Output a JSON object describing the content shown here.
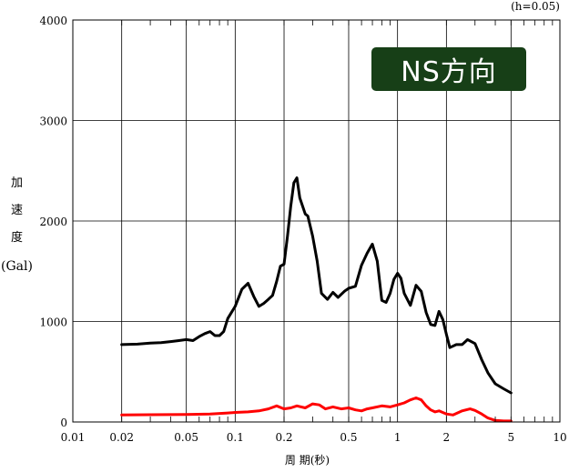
{
  "chart_data": {
    "type": "line",
    "damping_note": "(h=0.05)",
    "xlabel": "周 期(秒)",
    "ylabel_chars": [
      "加",
      "速",
      "度"
    ],
    "ylabel_unit": "(Gal)",
    "panel_label": "NS方向",
    "x_scale": "log",
    "xlim": [
      0.01,
      10
    ],
    "ylim": [
      0,
      4000
    ],
    "grid": true,
    "x_ticks": [
      0.01,
      0.02,
      0.05,
      0.1,
      0.2,
      0.5,
      1,
      2,
      5,
      10
    ],
    "x_tick_labels": [
      "0.01",
      "0.02",
      "0.05",
      "0.1",
      "0.2",
      "0.5",
      "1",
      "2",
      "5",
      "10"
    ],
    "y_ticks": [
      0,
      1000,
      2000,
      3000,
      4000
    ],
    "y_tick_labels": [
      "0",
      "1000",
      "2000",
      "3000",
      "4000"
    ],
    "series": [
      {
        "color": "#000000",
        "points": [
          [
            0.02,
            770
          ],
          [
            0.025,
            775
          ],
          [
            0.03,
            785
          ],
          [
            0.035,
            790
          ],
          [
            0.04,
            800
          ],
          [
            0.045,
            810
          ],
          [
            0.05,
            820
          ],
          [
            0.055,
            810
          ],
          [
            0.06,
            850
          ],
          [
            0.065,
            880
          ],
          [
            0.07,
            900
          ],
          [
            0.075,
            860
          ],
          [
            0.08,
            860
          ],
          [
            0.085,
            900
          ],
          [
            0.09,
            1030
          ],
          [
            0.1,
            1150
          ],
          [
            0.11,
            1320
          ],
          [
            0.12,
            1380
          ],
          [
            0.13,
            1250
          ],
          [
            0.14,
            1150
          ],
          [
            0.15,
            1180
          ],
          [
            0.16,
            1220
          ],
          [
            0.17,
            1260
          ],
          [
            0.18,
            1400
          ],
          [
            0.19,
            1550
          ],
          [
            0.2,
            1570
          ],
          [
            0.21,
            1850
          ],
          [
            0.22,
            2150
          ],
          [
            0.23,
            2380
          ],
          [
            0.24,
            2430
          ],
          [
            0.25,
            2230
          ],
          [
            0.27,
            2070
          ],
          [
            0.28,
            2050
          ],
          [
            0.3,
            1850
          ],
          [
            0.32,
            1600
          ],
          [
            0.34,
            1280
          ],
          [
            0.37,
            1220
          ],
          [
            0.4,
            1290
          ],
          [
            0.43,
            1240
          ],
          [
            0.47,
            1300
          ],
          [
            0.5,
            1330
          ],
          [
            0.55,
            1350
          ],
          [
            0.6,
            1560
          ],
          [
            0.65,
            1680
          ],
          [
            0.7,
            1770
          ],
          [
            0.75,
            1600
          ],
          [
            0.8,
            1210
          ],
          [
            0.85,
            1190
          ],
          [
            0.9,
            1280
          ],
          [
            0.95,
            1420
          ],
          [
            1.0,
            1480
          ],
          [
            1.05,
            1430
          ],
          [
            1.1,
            1280
          ],
          [
            1.2,
            1160
          ],
          [
            1.3,
            1360
          ],
          [
            1.4,
            1300
          ],
          [
            1.5,
            1090
          ],
          [
            1.6,
            970
          ],
          [
            1.7,
            960
          ],
          [
            1.8,
            1100
          ],
          [
            1.9,
            1020
          ],
          [
            2.0,
            870
          ],
          [
            2.1,
            740
          ],
          [
            2.3,
            770
          ],
          [
            2.5,
            770
          ],
          [
            2.7,
            820
          ],
          [
            3.0,
            780
          ],
          [
            3.3,
            620
          ],
          [
            3.6,
            490
          ],
          [
            4.0,
            380
          ],
          [
            4.5,
            330
          ],
          [
            5.0,
            290
          ]
        ]
      },
      {
        "color": "#ff0000",
        "points": [
          [
            0.02,
            70
          ],
          [
            0.03,
            72
          ],
          [
            0.05,
            75
          ],
          [
            0.07,
            80
          ],
          [
            0.09,
            90
          ],
          [
            0.1,
            95
          ],
          [
            0.12,
            100
          ],
          [
            0.14,
            110
          ],
          [
            0.16,
            130
          ],
          [
            0.18,
            160
          ],
          [
            0.2,
            130
          ],
          [
            0.22,
            140
          ],
          [
            0.24,
            160
          ],
          [
            0.27,
            140
          ],
          [
            0.3,
            180
          ],
          [
            0.33,
            170
          ],
          [
            0.36,
            130
          ],
          [
            0.4,
            150
          ],
          [
            0.45,
            130
          ],
          [
            0.5,
            140
          ],
          [
            0.55,
            120
          ],
          [
            0.6,
            110
          ],
          [
            0.65,
            130
          ],
          [
            0.7,
            140
          ],
          [
            0.8,
            160
          ],
          [
            0.9,
            150
          ],
          [
            1.0,
            170
          ],
          [
            1.1,
            190
          ],
          [
            1.2,
            220
          ],
          [
            1.3,
            240
          ],
          [
            1.4,
            220
          ],
          [
            1.5,
            160
          ],
          [
            1.6,
            120
          ],
          [
            1.7,
            100
          ],
          [
            1.8,
            110
          ],
          [
            2.0,
            80
          ],
          [
            2.2,
            70
          ],
          [
            2.5,
            110
          ],
          [
            2.8,
            130
          ],
          [
            3.0,
            115
          ],
          [
            3.3,
            80
          ],
          [
            3.6,
            40
          ],
          [
            4.0,
            15
          ],
          [
            4.5,
            10
          ],
          [
            5.0,
            10
          ]
        ]
      }
    ]
  }
}
